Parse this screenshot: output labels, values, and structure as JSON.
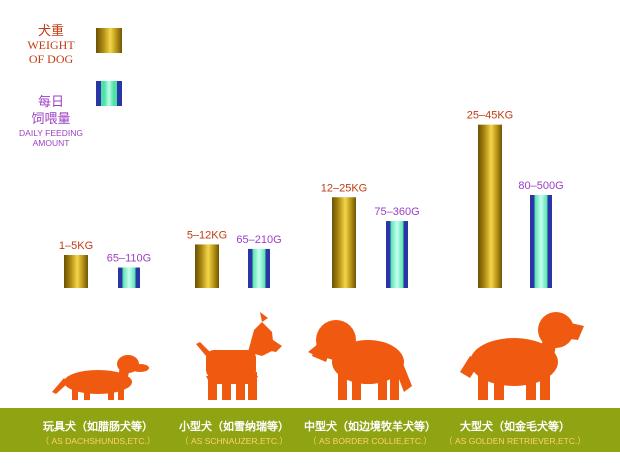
{
  "chart_data": {
    "type": "bar",
    "categories": [
      {
        "name_zh": "玩具犬（如腊肠犬等）",
        "name_en": "（ AS DACHSHUNDS,ETC.）",
        "icon": "dachshund-silhouette"
      },
      {
        "name_zh": "小型犬（如雪纳瑞等）",
        "name_en": "（ AS SCHNAUZER,ETC.）",
        "icon": "schnauzer-silhouette"
      },
      {
        "name_zh": "中型犬（如边境牧羊犬等）",
        "name_en": "（ AS BORDER COLLIE,ETC.）",
        "icon": "border-collie-silhouette"
      },
      {
        "name_zh": "大型犬（如金毛犬等）",
        "name_en": "（ AS GOLDEN RETRIEVER,ETC.）",
        "icon": "golden-retriever-silhouette"
      }
    ],
    "series": [
      {
        "key": "weight",
        "labels": [
          "1–5KG",
          "5–12KG",
          "12–25KG",
          "25–45KG"
        ],
        "max_values": [
          5,
          12,
          25,
          45
        ],
        "color": "#c9a22a"
      },
      {
        "key": "feeding",
        "labels": [
          "65–110G",
          "65–210G",
          "75–360G",
          "80–500G"
        ],
        "max_values": [
          110,
          210,
          360,
          500
        ],
        "color": "#2a35a8"
      }
    ],
    "legend": {
      "weight": {
        "zh": "犬重",
        "en_line1": "WEIGHT",
        "en_line2": "OF DOG"
      },
      "feeding": {
        "zh_line1": "每日",
        "zh_line2": "饲喂量",
        "en_line1": "DAILY FEEDING",
        "en_line2": "AMOUNT"
      },
      "placement": "top-left"
    },
    "grid": false
  },
  "colors": {
    "weight_label": "#c23b12",
    "feeding_label": "#9b3fc4",
    "dog_silhouette": "#f05a10",
    "band": "#8fa313",
    "band_text": "#ffffff",
    "band_subtext": "#ffd36a"
  }
}
